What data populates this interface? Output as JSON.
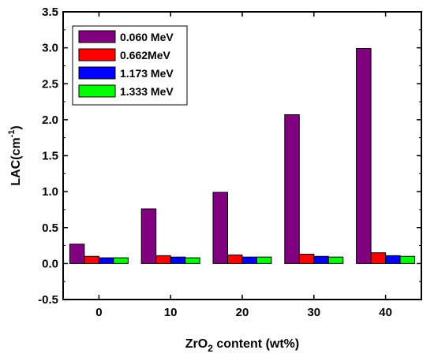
{
  "chart_data": {
    "type": "bar",
    "categories": [
      "0",
      "10",
      "20",
      "30",
      "40"
    ],
    "series": [
      {
        "name": "0.060 MeV",
        "color": "#800080",
        "values": [
          0.27,
          0.76,
          0.99,
          2.07,
          2.99
        ]
      },
      {
        "name": "0.662MeV",
        "color": "#ff0000",
        "values": [
          0.1,
          0.11,
          0.12,
          0.13,
          0.15
        ]
      },
      {
        "name": "1.173 MeV",
        "color": "#0000ff",
        "values": [
          0.08,
          0.09,
          0.09,
          0.1,
          0.11
        ]
      },
      {
        "name": "1.333 MeV",
        "color": "#00ff00",
        "values": [
          0.08,
          0.08,
          0.09,
          0.09,
          0.1
        ]
      }
    ],
    "ylim": [
      -0.5,
      3.5
    ],
    "yticks": [
      "-0.5",
      "0.0",
      "0.5",
      "1.0",
      "1.5",
      "2.0",
      "2.5",
      "3.0",
      "3.5"
    ],
    "ylabel": {
      "main": "LAC(cm",
      "sup": "-1",
      "close": ")"
    },
    "xlabel": {
      "pre": "ZrO",
      "sub": "2",
      "post": " content (wt%)"
    },
    "legend_position": "top-left",
    "grid": false
  }
}
